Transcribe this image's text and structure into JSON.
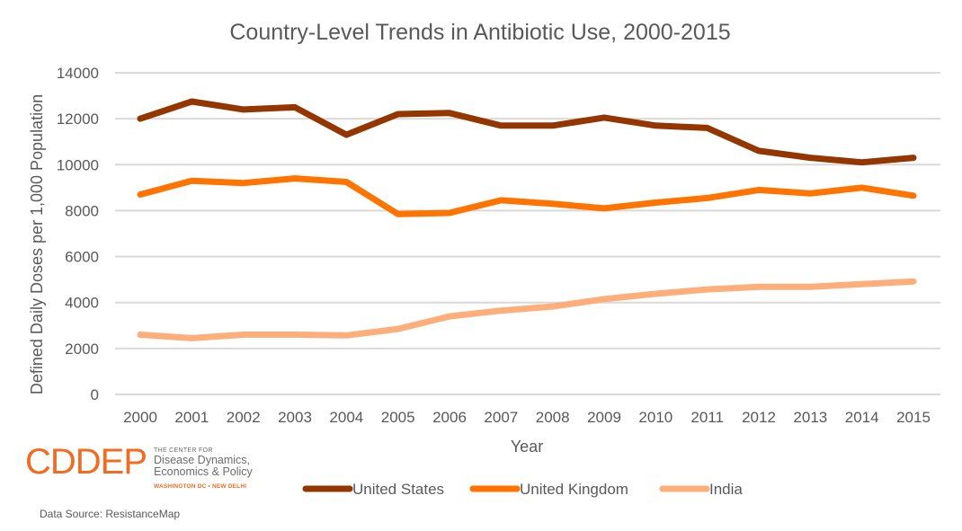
{
  "chart_data": {
    "type": "line",
    "title": "Country-Level Trends in Antibiotic Use, 2000-2015",
    "xlabel": "Year",
    "ylabel": "Defined Daily Doses per 1,000 Population",
    "x": [
      "2000",
      "2001",
      "2002",
      "2003",
      "2004",
      "2005",
      "2006",
      "2007",
      "2008",
      "2009",
      "2010",
      "2011",
      "2012",
      "2013",
      "2014",
      "2015"
    ],
    "ylim": [
      0,
      14000
    ],
    "yticks": [
      0,
      2000,
      4000,
      6000,
      8000,
      10000,
      12000,
      14000
    ],
    "ytick_labels": [
      "0",
      "2000",
      "4000",
      "6000",
      "8000",
      "10000",
      "12000",
      "14000"
    ],
    "grid": true,
    "legend_position": "bottom",
    "series": [
      {
        "name": "United States",
        "color": "#943600",
        "values": [
          12000,
          12750,
          12400,
          12500,
          11300,
          12200,
          12250,
          11700,
          11700,
          12050,
          11700,
          11600,
          10600,
          10300,
          10100,
          10300
        ]
      },
      {
        "name": "United Kingdom",
        "color": "#ff7300",
        "values": [
          8700,
          9300,
          9200,
          9400,
          9250,
          7850,
          7900,
          8450,
          8300,
          8100,
          8350,
          8550,
          8900,
          8750,
          9000,
          8650
        ]
      },
      {
        "name": "India",
        "color": "#fdae7b",
        "values": [
          2600,
          2450,
          2600,
          2600,
          2570,
          2850,
          3400,
          3650,
          3830,
          4150,
          4380,
          4570,
          4680,
          4680,
          4800,
          4920
        ]
      }
    ]
  },
  "logo": {
    "mark": "CDDEP",
    "line1": "THE CENTER FOR",
    "line2": "Disease Dynamics,",
    "line3": "Economics & Policy",
    "line4": "WASHINGTON DC • NEW DELHI"
  },
  "footer": {
    "source": "Data Source: ResistanceMap"
  }
}
